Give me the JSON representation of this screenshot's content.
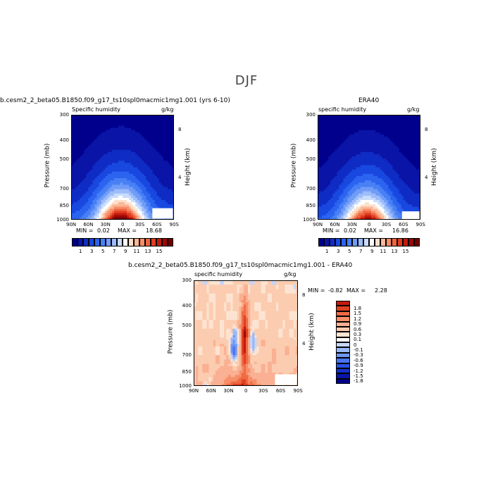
{
  "title": "DJF",
  "colors": {
    "main": [
      "#00008c",
      "#0a14a6",
      "#0f2cc4",
      "#1848e0",
      "#2c64f0",
      "#4880f5",
      "#709cf8",
      "#9cbcfa",
      "#c8dcfc",
      "#ffffff",
      "#fde0cc",
      "#fbb898",
      "#f78e68",
      "#ef6440",
      "#e03c20",
      "#c41a0e",
      "#9c0808",
      "#700000"
    ],
    "diff": [
      "#00008c",
      "#0a14a6",
      "#1430c8",
      "#2850e6",
      "#4a74f0",
      "#6e96f5",
      "#98b8f8",
      "#c4d6fa",
      "#ffffff",
      "#fde4d2",
      "#fcccb0",
      "#fab092",
      "#f78e68",
      "#f06a44",
      "#e04022",
      "#c41a0e",
      "#9c0808",
      "#700000"
    ]
  },
  "panels": [
    {
      "title": "b.cesm2_2_beta05.B1850.f09_g17_ts10spl0macmic1mg1.001 (yrs 6-10)",
      "left_label": "Specific humidity",
      "right_label": "g/kg",
      "min_label": "MIN =",
      "min_value": "0.02",
      "max_label": "MAX =",
      "max_value": "18.68",
      "ylabel": "Pressure (mb)",
      "ylabel2": "Height (km)"
    },
    {
      "title": "ERA40",
      "left_label": "specific humidity",
      "right_label": "g/kg",
      "min_label": "MIN =",
      "min_value": "0.02",
      "max_label": "MAX =",
      "max_value": "16.86",
      "ylabel": "Pressure (mb)",
      "ylabel2": "Height (km)"
    },
    {
      "title": "b.cesm2_2_beta05.B1850.f09_g17_ts10spl0macmic1mg1.001 - ERA40",
      "left_label": "specific humidity",
      "right_label": "g/kg",
      "min_label": "MIN =",
      "min_value": "-0.82",
      "max_label": "MAX =",
      "max_value": "2.28",
      "ylabel": "Pressure (mb)",
      "ylabel2": "Height (km)"
    }
  ],
  "chart_data": [
    {
      "type": "heatmap",
      "x_ticks": [
        "90N",
        "60N",
        "30N",
        "0",
        "30S",
        "60S",
        "90S"
      ],
      "y_ticks": [
        "300",
        "400",
        "500",
        "700",
        "850",
        "1000"
      ],
      "height_ticks": [
        "8",
        "4"
      ],
      "xlim": [
        90,
        -90
      ],
      "ylim": [
        1000,
        300
      ],
      "max_value": 18.68,
      "levels_labels": [
        "1",
        "3",
        "5",
        "7",
        "9",
        "11",
        "13",
        "15"
      ]
    },
    {
      "type": "heatmap",
      "x_ticks": [
        "90N",
        "60N",
        "30N",
        "0",
        "30S",
        "60S",
        "90S"
      ],
      "y_ticks": [
        "300",
        "400",
        "500",
        "700",
        "850",
        "1000"
      ],
      "height_ticks": [
        "8",
        "4"
      ],
      "xlim": [
        90,
        -90
      ],
      "ylim": [
        1000,
        300
      ],
      "max_value": 16.86,
      "levels_labels": [
        "1",
        "3",
        "5",
        "7",
        "9",
        "11",
        "13",
        "15"
      ]
    },
    {
      "type": "heatmap",
      "x_ticks": [
        "90N",
        "60N",
        "30N",
        "0",
        "30S",
        "60S",
        "90S"
      ],
      "y_ticks": [
        "300",
        "400",
        "500",
        "700",
        "850",
        "1000"
      ],
      "height_ticks": [
        "8",
        "4"
      ],
      "xlim": [
        90,
        -90
      ],
      "ylim": [
        1000,
        300
      ],
      "min_value": -0.82,
      "max_value": 2.28,
      "levels_labels": [
        "1.8",
        "1.5",
        "1.2",
        "0.9",
        "0.6",
        "0.3",
        "0.1",
        "0",
        "-0.1",
        "-0.3",
        "-0.6",
        "-0.9",
        "-1.2",
        "-1.5",
        "-1.8"
      ]
    }
  ]
}
